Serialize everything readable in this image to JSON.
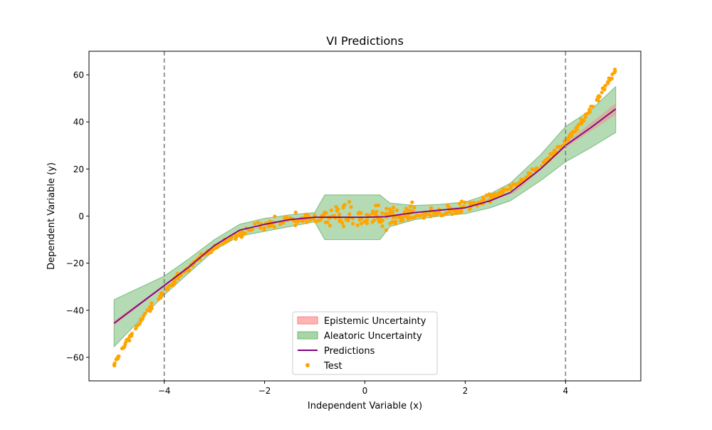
{
  "chart_data": {
    "type": "scatter",
    "title": "VI Predictions",
    "xlabel": "Independent Variable (x)",
    "ylabel": "Dependent Variable (y)",
    "xlim": [
      -5.5,
      5.5
    ],
    "ylim": [
      -70,
      70
    ],
    "xticks": [
      -4,
      -2,
      0,
      2,
      4
    ],
    "yticks": [
      -60,
      -40,
      -20,
      0,
      20,
      40,
      60
    ],
    "grid": false,
    "legend_position": "lower center",
    "vlines": [
      -4,
      4
    ],
    "legend": [
      {
        "label": "Epistemic Uncertainty",
        "kind": "patch",
        "color": "#ff9999"
      },
      {
        "label": "Aleatoric Uncertainty",
        "kind": "patch",
        "color": "#80c080"
      },
      {
        "label": "Predictions",
        "kind": "line",
        "color": "#800080"
      },
      {
        "label": "Test",
        "kind": "marker",
        "color": "#ffa500"
      }
    ],
    "colors": {
      "test": "#ffa500",
      "prediction": "#800080",
      "aleatoric_fill": "#6ab86a",
      "aleatoric_edge": "#4a9a4a",
      "epistemic_fill": "#ff8080",
      "vline": "#7f7f7f"
    },
    "prediction": {
      "x": [
        -5.0,
        -4.5,
        -4.0,
        -3.5,
        -3.0,
        -2.5,
        -2.0,
        -1.5,
        -1.0,
        -0.5,
        0.0,
        0.4,
        1.0,
        1.5,
        2.0,
        2.5,
        2.9,
        3.5,
        4.0,
        4.5,
        5.0
      ],
      "y": [
        -45.5,
        -37.5,
        -29.5,
        -21.5,
        -12.5,
        -6.0,
        -3.5,
        -1.5,
        -0.5,
        -0.5,
        -0.5,
        -0.3,
        1.5,
        2.5,
        3.5,
        6.5,
        10.0,
        20.0,
        30.0,
        37.5,
        45.5
      ]
    },
    "aleatoric_band": {
      "x": [
        -5.0,
        -4.0,
        -3.5,
        -3.0,
        -2.5,
        -2.0,
        -1.5,
        -1.0,
        -0.8,
        0.3,
        0.5,
        1.0,
        1.5,
        2.0,
        2.5,
        2.9,
        3.5,
        4.0,
        4.5,
        5.0
      ],
      "upper": [
        -35.5,
        -25.5,
        -18.0,
        -10.0,
        -3.5,
        -1.0,
        0.5,
        1.5,
        9.0,
        9.0,
        5.5,
        4.5,
        5.0,
        6.0,
        9.5,
        14.0,
        26.0,
        38.0,
        45.0,
        55.0
      ],
      "lower": [
        -55.5,
        -33.5,
        -24.0,
        -14.5,
        -8.5,
        -6.5,
        -4.5,
        -2.5,
        -10.0,
        -10.0,
        -4.5,
        -1.5,
        0.0,
        1.0,
        3.5,
        6.5,
        15.0,
        23.0,
        29.0,
        35.5
      ]
    },
    "epistemic_band": {
      "x": [
        -5.0,
        -4.0,
        -3.0,
        -2.0,
        -1.0,
        0.0,
        1.0,
        2.0,
        3.0,
        4.0,
        5.0
      ],
      "upper": [
        -44.5,
        -29.0,
        -12.3,
        -3.3,
        -0.3,
        -0.3,
        1.7,
        3.8,
        11.0,
        31.0,
        48.0
      ],
      "lower": [
        -46.5,
        -30.0,
        -12.7,
        -3.7,
        -0.7,
        -0.7,
        1.3,
        3.2,
        10.0,
        29.0,
        43.0
      ]
    }
  }
}
